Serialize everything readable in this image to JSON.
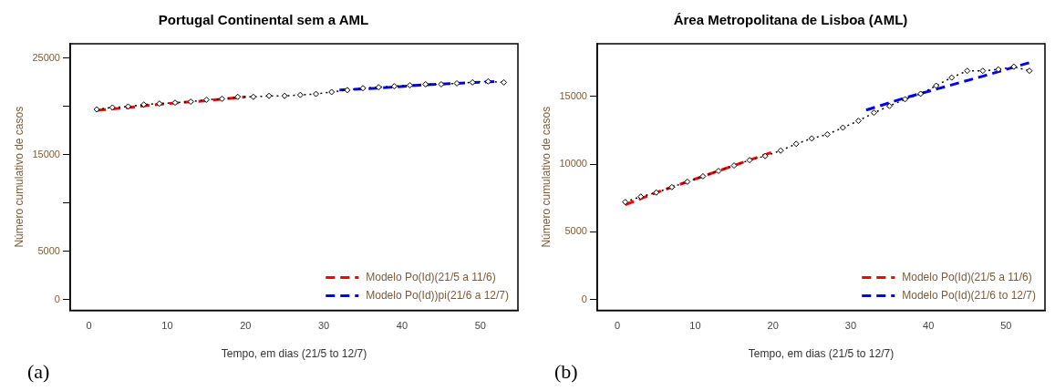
{
  "chart_data": [
    {
      "type": "line",
      "title": "Portugal Continental sem a AML",
      "xlabel": "Tempo, em dias (21/5 to 12/7)",
      "ylabel": "Número cumulativo de casos",
      "xlim": [
        -2.4,
        54.8
      ],
      "xticks": [
        0,
        10,
        20,
        30,
        40,
        50
      ],
      "ylim": [
        -1100,
        26500
      ],
      "yticks": [
        0,
        5000,
        {
          "value": 10000,
          "label": null
        },
        15000,
        {
          "value": 20000,
          "label": null
        },
        25000
      ],
      "legend": "bottom right",
      "grid": false,
      "annotations": [
        "(a)"
      ],
      "series": [
        {
          "color": "#000000",
          "marker": "diamond",
          "line_style": "dotted",
          "x": [
            1,
            3,
            5,
            7,
            9,
            11,
            13,
            15,
            17,
            19,
            21,
            23,
            25,
            27,
            29,
            31,
            33,
            35,
            37,
            39,
            41,
            43,
            45,
            47,
            49,
            51,
            53
          ],
          "values": [
            19700,
            19900,
            20000,
            20200,
            20300,
            20400,
            20500,
            20700,
            20800,
            21000,
            21000,
            21100,
            21100,
            21200,
            21300,
            21500,
            21700,
            21900,
            22000,
            22100,
            22200,
            22300,
            22300,
            22400,
            22500,
            22600,
            22500
          ]
        },
        {
          "name": "Modelo Po(Id)(21/5 a 11/6)",
          "color": "#ff0000",
          "marker": "none",
          "line_style": "dashed",
          "x": [
            1,
            5,
            10,
            15,
            20
          ],
          "values": [
            19600,
            19900,
            20300,
            20600,
            21000
          ]
        },
        {
          "name": "Modelo Po(Id))pi(21/6 a 12/7)",
          "color": "#0000ff",
          "marker": "none",
          "line_style": "dashed",
          "x": [
            32,
            37,
            42,
            47,
            52
          ],
          "values": [
            21700,
            21900,
            22200,
            22400,
            22600
          ]
        }
      ]
    },
    {
      "type": "line",
      "title": "Área Metropolitana de Lisboa (AML)",
      "xlabel": "Tempo, em dias (21/5 to 12/7)",
      "ylabel": "Número cumulativo de casos",
      "xlim": [
        -2.6,
        55
      ],
      "xticks": [
        0,
        10,
        20,
        30,
        40,
        50
      ],
      "ylim": [
        -800,
        18900
      ],
      "yticks": [
        0,
        5000,
        10000,
        15000
      ],
      "legend": "bottom right",
      "grid": false,
      "annotations": [
        "(b)"
      ],
      "series": [
        {
          "color": "#000000",
          "marker": "diamond",
          "line_style": "dotted",
          "x": [
            1,
            3,
            5,
            7,
            9,
            11,
            13,
            15,
            17,
            19,
            21,
            23,
            25,
            27,
            29,
            31,
            33,
            35,
            37,
            39,
            41,
            43,
            45,
            47,
            49,
            51,
            53
          ],
          "values": [
            7200,
            7600,
            7900,
            8300,
            8700,
            9100,
            9500,
            9900,
            10300,
            10600,
            11000,
            11500,
            11900,
            12200,
            12700,
            13200,
            13800,
            14300,
            14800,
            15200,
            15800,
            16400,
            16900,
            16900,
            17000,
            17200,
            16900
          ]
        },
        {
          "name": "Modelo Po(Id)(21/5 a 11/6)",
          "color": "#ff0000",
          "marker": "none",
          "line_style": "dashed",
          "x": [
            1,
            5,
            10,
            15,
            20
          ],
          "values": [
            7000,
            7900,
            8900,
            9900,
            10900
          ]
        },
        {
          "name": "Modelo Po(Id)(21/6 to 12/7)",
          "color": "#0000ff",
          "marker": "none",
          "line_style": "dashed",
          "x": [
            32,
            37,
            42,
            47,
            53
          ],
          "values": [
            14000,
            14900,
            15700,
            16500,
            17500
          ]
        }
      ]
    }
  ]
}
